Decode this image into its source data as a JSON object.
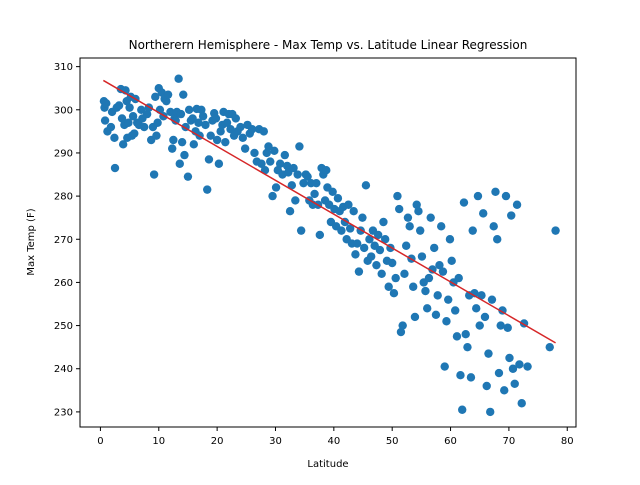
{
  "chart_data": {
    "type": "scatter",
    "title": "Northerern Hemisphere - Max Temp vs. Latitude Linear Regression",
    "xlabel": "Latitude",
    "ylabel": "Max Temp (F)",
    "xlim": [
      -3.5,
      81.5
    ],
    "ylim": [
      226.5,
      312
    ],
    "xticks": [
      0,
      10,
      20,
      30,
      40,
      50,
      60,
      70,
      80
    ],
    "yticks": [
      230,
      240,
      250,
      260,
      270,
      280,
      290,
      300,
      310
    ],
    "grid": false,
    "legend": "none",
    "colors": {
      "points": "#1f77b4",
      "regression": "#d62728"
    },
    "regression": {
      "x": [
        0.5,
        78.0
      ],
      "y": [
        306.8,
        246.0
      ]
    },
    "points": [
      [
        0.6,
        302
      ],
      [
        0.7,
        300.5
      ],
      [
        0.8,
        297.5
      ],
      [
        1.0,
        301.5
      ],
      [
        1.2,
        295
      ],
      [
        1.8,
        296
      ],
      [
        2.0,
        299.5
      ],
      [
        2.4,
        293.5
      ],
      [
        2.5,
        286.5
      ],
      [
        2.8,
        300.5
      ],
      [
        3.2,
        301
      ],
      [
        3.5,
        304.8
      ],
      [
        3.7,
        298
      ],
      [
        3.9,
        292
      ],
      [
        4.1,
        296.5
      ],
      [
        4.3,
        304.5
      ],
      [
        4.5,
        302
      ],
      [
        4.6,
        293.5
      ],
      [
        4.8,
        297
      ],
      [
        5.0,
        300.5
      ],
      [
        5.2,
        303
      ],
      [
        5.4,
        294
      ],
      [
        5.6,
        298.5
      ],
      [
        5.8,
        294.5
      ],
      [
        6.0,
        302.5
      ],
      [
        6.3,
        297
      ],
      [
        6.6,
        296.5
      ],
      [
        7.0,
        300
      ],
      [
        7.2,
        298
      ],
      [
        7.5,
        296
      ],
      [
        8.0,
        299
      ],
      [
        8.3,
        300.5
      ],
      [
        8.7,
        293
      ],
      [
        9.0,
        296
      ],
      [
        9.2,
        285
      ],
      [
        9.4,
        303
      ],
      [
        9.6,
        294
      ],
      [
        9.8,
        297
      ],
      [
        10.0,
        305
      ],
      [
        10.2,
        300
      ],
      [
        10.5,
        304
      ],
      [
        10.8,
        298.5
      ],
      [
        11.0,
        302.5
      ],
      [
        11.3,
        302
      ],
      [
        11.6,
        303.5
      ],
      [
        12.0,
        299.5
      ],
      [
        12.3,
        291
      ],
      [
        12.5,
        293
      ],
      [
        12.7,
        298
      ],
      [
        12.9,
        297.5
      ],
      [
        13.1,
        299.5
      ],
      [
        13.4,
        307.2
      ],
      [
        13.6,
        287.5
      ],
      [
        13.8,
        299
      ],
      [
        14.0,
        292.5
      ],
      [
        14.2,
        303.5
      ],
      [
        14.4,
        289.5
      ],
      [
        14.6,
        296
      ],
      [
        15.0,
        284.5
      ],
      [
        15.2,
        300
      ],
      [
        15.5,
        297.5
      ],
      [
        15.8,
        298
      ],
      [
        16.0,
        292
      ],
      [
        16.3,
        295
      ],
      [
        16.5,
        300.2
      ],
      [
        16.8,
        297
      ],
      [
        17.0,
        294
      ],
      [
        17.3,
        300
      ],
      [
        17.6,
        298.5
      ],
      [
        18.0,
        296.5
      ],
      [
        18.3,
        281.5
      ],
      [
        18.6,
        288.5
      ],
      [
        18.9,
        294
      ],
      [
        19.2,
        297.5
      ],
      [
        19.5,
        299.2
      ],
      [
        19.8,
        298
      ],
      [
        20.0,
        293
      ],
      [
        20.3,
        287.5
      ],
      [
        20.6,
        295
      ],
      [
        20.9,
        296.5
      ],
      [
        21.1,
        299.5
      ],
      [
        21.4,
        292.5
      ],
      [
        21.7,
        297
      ],
      [
        22.0,
        299
      ],
      [
        22.3,
        295.5
      ],
      [
        22.6,
        299
      ],
      [
        22.9,
        294
      ],
      [
        23.2,
        298
      ],
      [
        23.5,
        295
      ],
      [
        24.0,
        296
      ],
      [
        24.4,
        293.5
      ],
      [
        24.8,
        291
      ],
      [
        25.2,
        296.5
      ],
      [
        25.6,
        294.5
      ],
      [
        26.0,
        295.5
      ],
      [
        26.4,
        290
      ],
      [
        26.8,
        288
      ],
      [
        27.2,
        295.5
      ],
      [
        27.6,
        287.5
      ],
      [
        28.0,
        295
      ],
      [
        28.2,
        286
      ],
      [
        28.5,
        290
      ],
      [
        28.8,
        291.5
      ],
      [
        29.1,
        288
      ],
      [
        29.5,
        280
      ],
      [
        29.8,
        290.5
      ],
      [
        30.1,
        282
      ],
      [
        30.4,
        286
      ],
      [
        30.8,
        287.5
      ],
      [
        31.2,
        285
      ],
      [
        31.6,
        289.5
      ],
      [
        32.0,
        287
      ],
      [
        32.2,
        285.5
      ],
      [
        32.5,
        276.5
      ],
      [
        32.8,
        282.5
      ],
      [
        33.1,
        286.5
      ],
      [
        33.4,
        279
      ],
      [
        33.8,
        285
      ],
      [
        34.1,
        291.5
      ],
      [
        34.4,
        272
      ],
      [
        34.8,
        283
      ],
      [
        35.2,
        285
      ],
      [
        35.5,
        284.5
      ],
      [
        35.8,
        279
      ],
      [
        36.1,
        283
      ],
      [
        36.4,
        278
      ],
      [
        36.7,
        280.5
      ],
      [
        37.0,
        283
      ],
      [
        37.3,
        278
      ],
      [
        37.6,
        271
      ],
      [
        37.9,
        286.5
      ],
      [
        38.2,
        285
      ],
      [
        38.5,
        279
      ],
      [
        38.7,
        286
      ],
      [
        38.9,
        282
      ],
      [
        39.2,
        278
      ],
      [
        39.5,
        274
      ],
      [
        39.8,
        281
      ],
      [
        40.1,
        277
      ],
      [
        40.4,
        273
      ],
      [
        40.7,
        279.5
      ],
      [
        41.0,
        276.5
      ],
      [
        41.3,
        272
      ],
      [
        41.6,
        277.5
      ],
      [
        41.9,
        274
      ],
      [
        42.2,
        270
      ],
      [
        42.5,
        278
      ],
      [
        42.8,
        272.5
      ],
      [
        43.1,
        269
      ],
      [
        43.4,
        276.5
      ],
      [
        43.7,
        266.5
      ],
      [
        44.0,
        269
      ],
      [
        44.3,
        262.5
      ],
      [
        44.6,
        272
      ],
      [
        44.9,
        275
      ],
      [
        45.2,
        268
      ],
      [
        45.5,
        282.5
      ],
      [
        45.8,
        265
      ],
      [
        46.1,
        270
      ],
      [
        46.4,
        266
      ],
      [
        46.7,
        272
      ],
      [
        47.0,
        268.5
      ],
      [
        47.3,
        264
      ],
      [
        47.6,
        271
      ],
      [
        47.9,
        267.5
      ],
      [
        48.2,
        262
      ],
      [
        48.5,
        274
      ],
      [
        48.8,
        270
      ],
      [
        49.1,
        265
      ],
      [
        49.4,
        259
      ],
      [
        49.7,
        268
      ],
      [
        50.0,
        264.5
      ],
      [
        50.3,
        257.5
      ],
      [
        50.6,
        261
      ],
      [
        50.9,
        280
      ],
      [
        51.2,
        277
      ],
      [
        51.5,
        248.5
      ],
      [
        51.8,
        250
      ],
      [
        52.1,
        262
      ],
      [
        52.4,
        268.5
      ],
      [
        52.7,
        275
      ],
      [
        53.0,
        273
      ],
      [
        53.3,
        265.5
      ],
      [
        53.6,
        259
      ],
      [
        53.9,
        252
      ],
      [
        54.2,
        278
      ],
      [
        54.5,
        276.5
      ],
      [
        54.8,
        272
      ],
      [
        55.1,
        266
      ],
      [
        55.4,
        260
      ],
      [
        55.7,
        258
      ],
      [
        56.0,
        254
      ],
      [
        56.3,
        261
      ],
      [
        56.6,
        275
      ],
      [
        56.9,
        263
      ],
      [
        57.2,
        268
      ],
      [
        57.5,
        252.5
      ],
      [
        57.8,
        257
      ],
      [
        58.1,
        264
      ],
      [
        58.4,
        273
      ],
      [
        58.7,
        262.5
      ],
      [
        59.0,
        240.5
      ],
      [
        59.3,
        251
      ],
      [
        59.6,
        256
      ],
      [
        59.9,
        270
      ],
      [
        60.2,
        265
      ],
      [
        60.5,
        260
      ],
      [
        60.8,
        253.5
      ],
      [
        61.1,
        247.5
      ],
      [
        61.4,
        261
      ],
      [
        61.7,
        238.5
      ],
      [
        62.0,
        230.5
      ],
      [
        62.3,
        278.5
      ],
      [
        62.6,
        248
      ],
      [
        62.9,
        245
      ],
      [
        63.2,
        257
      ],
      [
        63.5,
        238
      ],
      [
        63.8,
        272
      ],
      [
        64.1,
        257.5
      ],
      [
        64.4,
        254
      ],
      [
        64.7,
        280
      ],
      [
        65.0,
        250
      ],
      [
        65.3,
        257
      ],
      [
        65.6,
        276
      ],
      [
        65.9,
        252
      ],
      [
        66.2,
        236
      ],
      [
        66.5,
        243.5
      ],
      [
        66.8,
        230
      ],
      [
        67.1,
        256
      ],
      [
        67.4,
        273
      ],
      [
        67.7,
        281
      ],
      [
        68.0,
        270
      ],
      [
        68.3,
        239
      ],
      [
        68.6,
        250
      ],
      [
        68.9,
        253.5
      ],
      [
        69.2,
        235
      ],
      [
        69.5,
        280
      ],
      [
        69.8,
        249.5
      ],
      [
        70.1,
        242.5
      ],
      [
        70.4,
        275.5
      ],
      [
        70.7,
        240
      ],
      [
        71.0,
        236.5
      ],
      [
        71.4,
        278
      ],
      [
        71.8,
        241
      ],
      [
        72.2,
        232
      ],
      [
        72.6,
        250.5
      ],
      [
        73.2,
        240.5
      ],
      [
        77.0,
        245
      ],
      [
        78.0,
        272
      ]
    ]
  }
}
